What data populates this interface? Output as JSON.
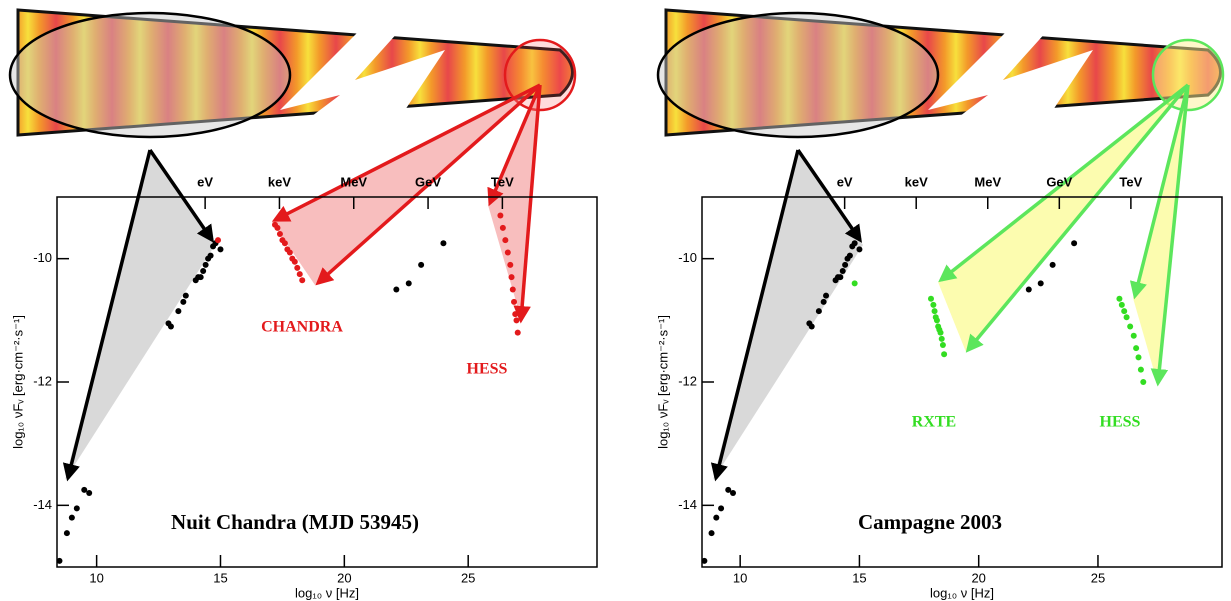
{
  "chart_data": [
    {
      "type": "scatter",
      "title": "Nuit Chandra (MJD 53945)",
      "x_label": "log₁₀ ν   [Hz]",
      "y_label": "log₁₀ νFᵥ   [erg·cm⁻²·s⁻¹]",
      "xlim": [
        8.4,
        30.2
      ],
      "ylim": [
        -15,
        -9
      ],
      "xticks": [
        10,
        15,
        20,
        25
      ],
      "yticks": [
        -14,
        -12,
        -10
      ],
      "top_ticks": [
        {
          "value": 14.38,
          "label": "eV"
        },
        {
          "value": 17.38,
          "label": "keV"
        },
        {
          "value": 20.38,
          "label": "MeV"
        },
        {
          "value": 23.38,
          "label": "GeV"
        },
        {
          "value": 26.38,
          "label": "TeV"
        }
      ],
      "annotations": [
        "CHANDRA",
        "HESS"
      ],
      "series": [
        {
          "color": "#000000",
          "x": [
            8.5,
            8.8,
            9.0,
            9.2,
            9.5,
            9.7,
            12.9,
            13.0,
            13.3,
            13.5,
            13.6,
            14.0,
            14.1,
            14.2,
            14.3,
            14.4,
            14.5,
            14.6,
            14.7,
            14.8,
            15.0,
            22.1,
            22.6,
            23.1,
            24.0
          ],
          "y": [
            -14.9,
            -14.45,
            -14.2,
            -14.05,
            -13.75,
            -13.8,
            -11.05,
            -11.1,
            -10.85,
            -10.7,
            -10.6,
            -10.35,
            -10.3,
            -10.3,
            -10.2,
            -10.1,
            -10.0,
            -9.95,
            -9.8,
            -9.75,
            -9.85,
            -10.5,
            -10.4,
            -10.1,
            -9.75
          ]
        },
        {
          "color": "#e31a1c",
          "x": [
            14.9,
            17.2,
            17.3,
            17.4,
            17.5,
            17.6,
            17.7,
            17.8,
            17.9,
            18.0,
            18.1,
            18.2,
            18.3
          ],
          "y": [
            -9.7,
            -9.45,
            -9.5,
            -9.6,
            -9.7,
            -9.75,
            -9.85,
            -9.9,
            -10.0,
            -10.05,
            -10.15,
            -10.25,
            -10.35
          ]
        },
        {
          "color": "#e31a1c",
          "x": [
            26.3,
            26.4,
            26.5,
            26.6,
            26.7,
            26.75,
            26.8,
            26.85,
            26.9,
            26.95,
            27.0
          ],
          "y": [
            -9.3,
            -9.5,
            -9.7,
            -9.9,
            -10.1,
            -10.3,
            -10.5,
            -10.7,
            -10.9,
            -11.0,
            -11.2
          ]
        }
      ]
    },
    {
      "type": "scatter",
      "title": "Campagne 2003",
      "x_label": "log₁₀ ν   [Hz]",
      "y_label": "log₁₀ νFᵥ   [erg·cm⁻²·s⁻¹]",
      "xlim": [
        8.4,
        30.2
      ],
      "ylim": [
        -15,
        -9
      ],
      "xticks": [
        10,
        15,
        20,
        25
      ],
      "yticks": [
        -14,
        -12,
        -10
      ],
      "top_ticks": [
        {
          "value": 14.38,
          "label": "eV"
        },
        {
          "value": 17.38,
          "label": "keV"
        },
        {
          "value": 20.38,
          "label": "MeV"
        },
        {
          "value": 23.38,
          "label": "GeV"
        },
        {
          "value": 26.38,
          "label": "TeV"
        }
      ],
      "annotations": [
        "RXTE",
        "HESS"
      ],
      "series": [
        {
          "color": "#000000",
          "x": [
            8.5,
            8.8,
            9.0,
            9.2,
            9.5,
            9.7,
            12.9,
            13.0,
            13.3,
            13.5,
            13.6,
            14.0,
            14.1,
            14.2,
            14.3,
            14.4,
            14.5,
            14.6,
            14.7,
            14.8,
            15.0,
            22.1,
            22.6,
            23.1,
            24.0
          ],
          "y": [
            -14.9,
            -14.45,
            -14.2,
            -14.05,
            -13.75,
            -13.8,
            -11.05,
            -11.1,
            -10.85,
            -10.7,
            -10.6,
            -10.35,
            -10.3,
            -10.3,
            -10.2,
            -10.1,
            -10.0,
            -9.95,
            -9.8,
            -9.75,
            -9.85,
            -10.5,
            -10.4,
            -10.1,
            -9.75
          ]
        },
        {
          "color": "#33dd22",
          "x": [
            14.8,
            18.0,
            18.1,
            18.15,
            18.2,
            18.25,
            18.3,
            18.35,
            18.4,
            18.45,
            18.5,
            18.55
          ],
          "y": [
            -10.4,
            -10.65,
            -10.75,
            -10.85,
            -10.95,
            -11.0,
            -11.1,
            -11.15,
            -11.2,
            -11.3,
            -11.4,
            -11.55
          ]
        },
        {
          "color": "#33dd22",
          "x": [
            25.9,
            26.0,
            26.1,
            26.2,
            26.35,
            26.5,
            26.6,
            26.7,
            26.8,
            26.9
          ],
          "y": [
            -10.65,
            -10.75,
            -10.85,
            -10.95,
            -11.1,
            -11.25,
            -11.45,
            -11.6,
            -11.8,
            -12.0
          ]
        }
      ]
    }
  ]
}
